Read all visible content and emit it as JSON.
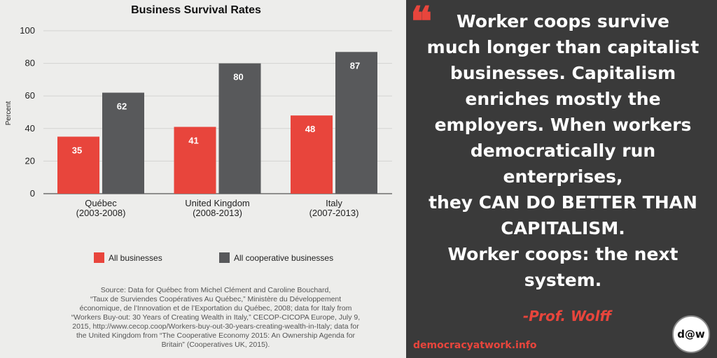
{
  "chart_data": {
    "type": "bar",
    "title": "Business Survival Rates",
    "ylabel": "Percent",
    "ylim": [
      0,
      100
    ],
    "yticks": [
      0,
      20,
      40,
      60,
      80,
      100
    ],
    "grid": true,
    "legend_position": "bottom",
    "categories": [
      {
        "name": "Québec",
        "period": "(2003-2008)"
      },
      {
        "name": "United Kingdom",
        "period": "(2008-2013)"
      },
      {
        "name": "Italy",
        "period": "(2007-2013)"
      }
    ],
    "series": [
      {
        "name": "All businesses",
        "color": "#e8453c",
        "values": [
          35,
          41,
          48
        ]
      },
      {
        "name": "All cooperative businesses",
        "color": "#58595b",
        "values": [
          62,
          80,
          87
        ]
      }
    ]
  },
  "source_lines": [
    "Source: Data for Québec from Michel Clément and Caroline Bouchard,",
    "“Taux de Surviendes Coopératives Au Québec,” Ministère du Développement",
    "économique, de l’Innovation et de l’Exportation du Québec, 2008; data for Italy from",
    "“Workers Buy-out: 30 Years of Creating Wealth in Italy,” CECOP-CICOPA Europe, July 9,",
    "2015, http://www.cecop.coop/Workers-buy-out-30-years-creating-wealth-in-Italy; data for",
    "the United Kingdom from “The Cooperative Economy 2015: An Ownership Agenda for",
    "Britain” (Cooperatives UK, 2015)."
  ],
  "quote": {
    "mark": "❝",
    "lines": [
      "Worker coops survive",
      "much longer than capitalist",
      "businesses. Capitalism",
      "enriches mostly the",
      "employers. When workers",
      "democratically run",
      "enterprises,",
      "they CAN DO BETTER THAN",
      "CAPITALISM.",
      "Worker coops: the next",
      "system."
    ],
    "attribution": "-Prof. Wolff"
  },
  "footer": {
    "site": "democracyatwork.info",
    "logo": "d@w"
  },
  "colors": {
    "accent": "#e8453c",
    "panel": "#3a3a3a",
    "background": "#ededeb",
    "coop_bar": "#58595b"
  }
}
